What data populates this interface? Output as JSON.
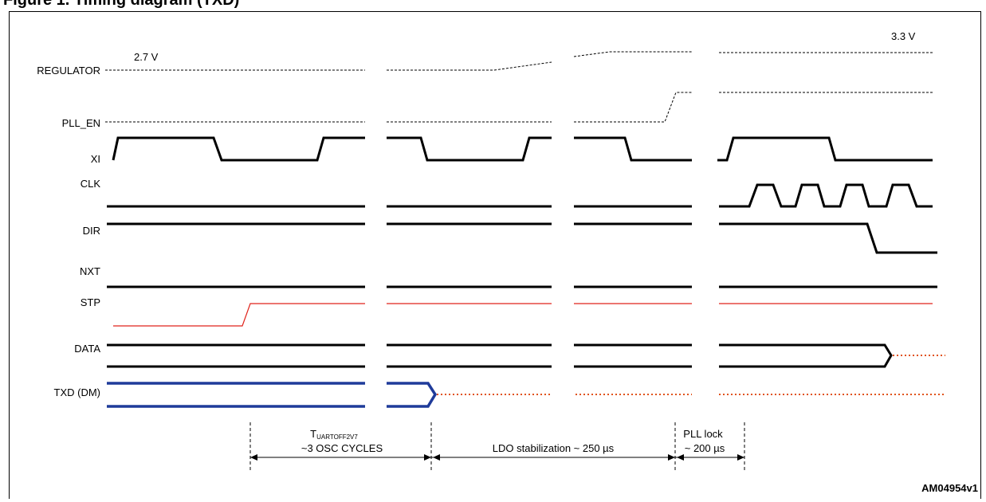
{
  "header_fragment": "Figure 1. Timing diagram (TXD)",
  "figure_id": "AM04954v1",
  "voltages": {
    "start": "2.7 V",
    "end": "3.3 V"
  },
  "signals": [
    {
      "key": "regulator",
      "label": "REGULATOR"
    },
    {
      "key": "pll_en",
      "label": "PLL_EN"
    },
    {
      "key": "xi",
      "label": "XI"
    },
    {
      "key": "clk",
      "label": "CLK"
    },
    {
      "key": "dir",
      "label": "DIR"
    },
    {
      "key": "nxt",
      "label": "NXT"
    },
    {
      "key": "stp",
      "label": "STP"
    },
    {
      "key": "data",
      "label": "DATA"
    },
    {
      "key": "txd",
      "label": "TXD (DM)"
    }
  ],
  "annotations": {
    "t_uartoff_main": "T",
    "t_uartoff_sub": "UARTOFF2V7",
    "osc_cycles": "~3 OSC CYCLES",
    "ldo": "LDO stabilization ~ 250 µs",
    "pll_lock": "PLL lock",
    "pll_time": "~ 200 µs"
  },
  "colors": {
    "signal": "#000000",
    "stp": "#e0231b",
    "txd": "#1f3b9a",
    "undefined": "#e0531b"
  }
}
